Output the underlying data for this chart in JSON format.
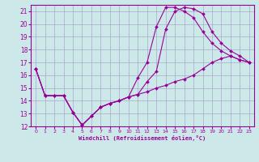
{
  "xlabel": "Windchill (Refroidissement éolien,°C)",
  "bg_color": "#cce8e8",
  "grid_color": "#aaaacc",
  "line_color": "#990099",
  "xlim": [
    -0.5,
    23.5
  ],
  "ylim": [
    12,
    21.5
  ],
  "xticks": [
    0,
    1,
    2,
    3,
    4,
    5,
    6,
    7,
    8,
    9,
    10,
    11,
    12,
    13,
    14,
    15,
    16,
    17,
    18,
    19,
    20,
    21,
    22,
    23
  ],
  "yticks": [
    12,
    13,
    14,
    15,
    16,
    17,
    18,
    19,
    20,
    21
  ],
  "curve1_x": [
    0,
    1,
    2,
    3,
    4,
    5,
    6,
    7,
    8,
    9,
    10,
    11,
    12,
    13,
    14,
    15,
    16,
    17,
    18,
    19,
    20,
    21,
    22,
    23
  ],
  "curve1_y": [
    16.5,
    14.4,
    14.4,
    14.4,
    13.1,
    12.1,
    12.8,
    13.5,
    13.8,
    14.0,
    14.3,
    14.5,
    14.7,
    15.0,
    15.2,
    15.5,
    15.7,
    16.0,
    16.5,
    17.0,
    17.3,
    17.5,
    17.2,
    17.0
  ],
  "curve2_x": [
    0,
    1,
    2,
    3,
    4,
    5,
    6,
    7,
    8,
    9,
    10,
    11,
    12,
    13,
    14,
    15,
    16,
    17,
    18,
    19,
    20,
    21,
    22,
    23
  ],
  "curve2_y": [
    16.5,
    14.4,
    14.4,
    14.4,
    13.1,
    12.1,
    12.8,
    13.5,
    13.8,
    14.0,
    14.3,
    14.5,
    15.5,
    16.3,
    19.6,
    21.0,
    21.3,
    21.2,
    20.8,
    19.4,
    18.5,
    17.9,
    17.5,
    17.0
  ],
  "curve3_x": [
    0,
    1,
    2,
    3,
    4,
    5,
    6,
    7,
    8,
    9,
    10,
    11,
    12,
    13,
    14,
    15,
    16,
    17,
    18,
    19,
    20,
    21,
    22,
    23
  ],
  "curve3_y": [
    16.5,
    14.4,
    14.4,
    14.4,
    13.1,
    12.1,
    12.8,
    13.5,
    13.8,
    14.0,
    14.3,
    15.8,
    17.0,
    19.8,
    21.3,
    21.3,
    21.0,
    20.5,
    19.4,
    18.5,
    17.9,
    17.5,
    17.2,
    17.0
  ]
}
